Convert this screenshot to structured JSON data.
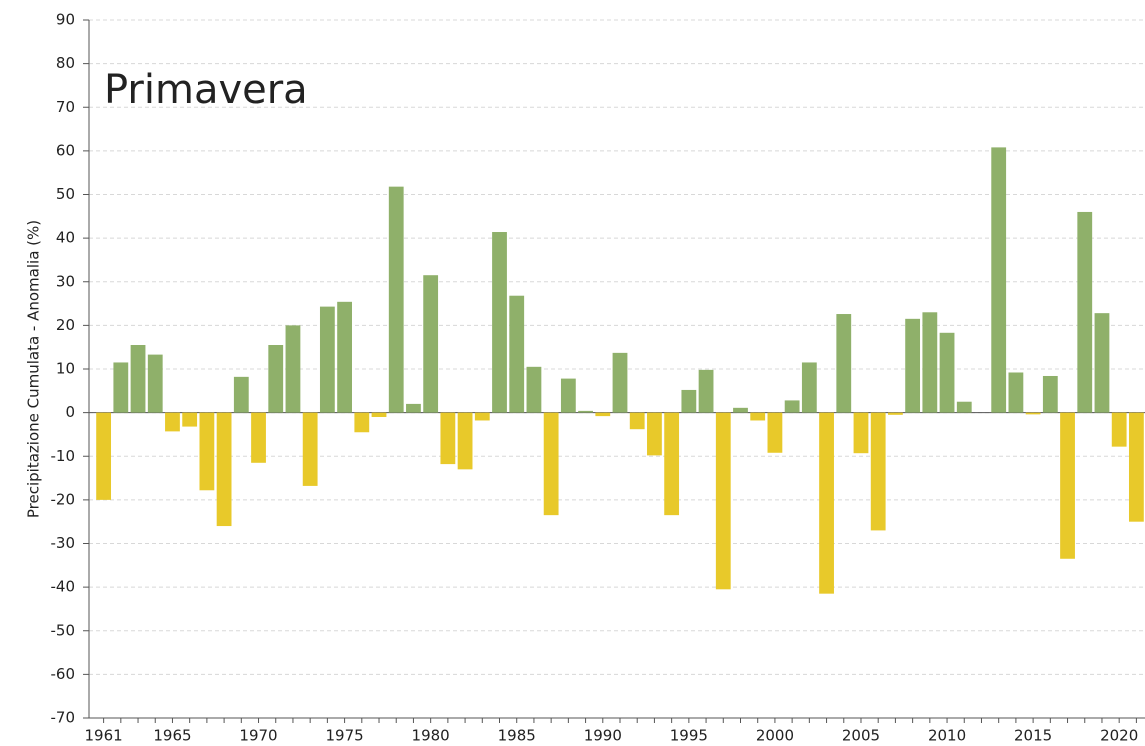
{
  "chart_data": {
    "type": "bar",
    "title": "Primavera",
    "y_label": "Precipitazione Cumulata - Anomalia (%)",
    "categories": [
      "1961",
      null,
      null,
      null,
      "1965",
      null,
      null,
      null,
      null,
      "1970",
      null,
      null,
      null,
      null,
      "1975",
      null,
      null,
      null,
      null,
      "1980",
      null,
      null,
      null,
      null,
      "1985",
      null,
      null,
      null,
      null,
      "1990",
      null,
      null,
      null,
      null,
      "1995",
      null,
      null,
      null,
      null,
      "2000",
      null,
      null,
      null,
      null,
      "2005",
      null,
      null,
      null,
      null,
      "2010",
      null,
      null,
      null,
      null,
      "2015",
      null,
      null,
      null,
      null,
      "2020",
      null
    ],
    "values": [
      -20,
      11.5,
      15.5,
      13.3,
      -4.3,
      -3.2,
      -17.8,
      -26,
      8.2,
      -11.5,
      15.5,
      20,
      -16.8,
      24.3,
      25.4,
      -4.5,
      -1,
      51.8,
      2,
      31.5,
      -11.8,
      -13,
      -1.8,
      41.4,
      26.8,
      10.5,
      -23.5,
      7.8,
      0.4,
      -0.8,
      13.7,
      -3.8,
      -9.8,
      -23.5,
      5.2,
      9.8,
      -40.5,
      1.1,
      -1.8,
      -9.2,
      2.8,
      11.5,
      -41.5,
      22.6,
      -9.3,
      -27,
      -0.5,
      21.5,
      23,
      18.3,
      2.5,
      0,
      60.8,
      9.2,
      -0.4,
      8.4,
      -33.5,
      46,
      22.8,
      -7.8,
      -25
    ],
    "positive_color": "#8fb06a",
    "negative_color": "#e8c92a",
    "ylim": [
      -70,
      90
    ],
    "yticks": [
      -70,
      -60,
      -50,
      -40,
      -30,
      -20,
      -10,
      0,
      10,
      20,
      30,
      40,
      50,
      60,
      70,
      80,
      90
    ],
    "grid": true
  }
}
